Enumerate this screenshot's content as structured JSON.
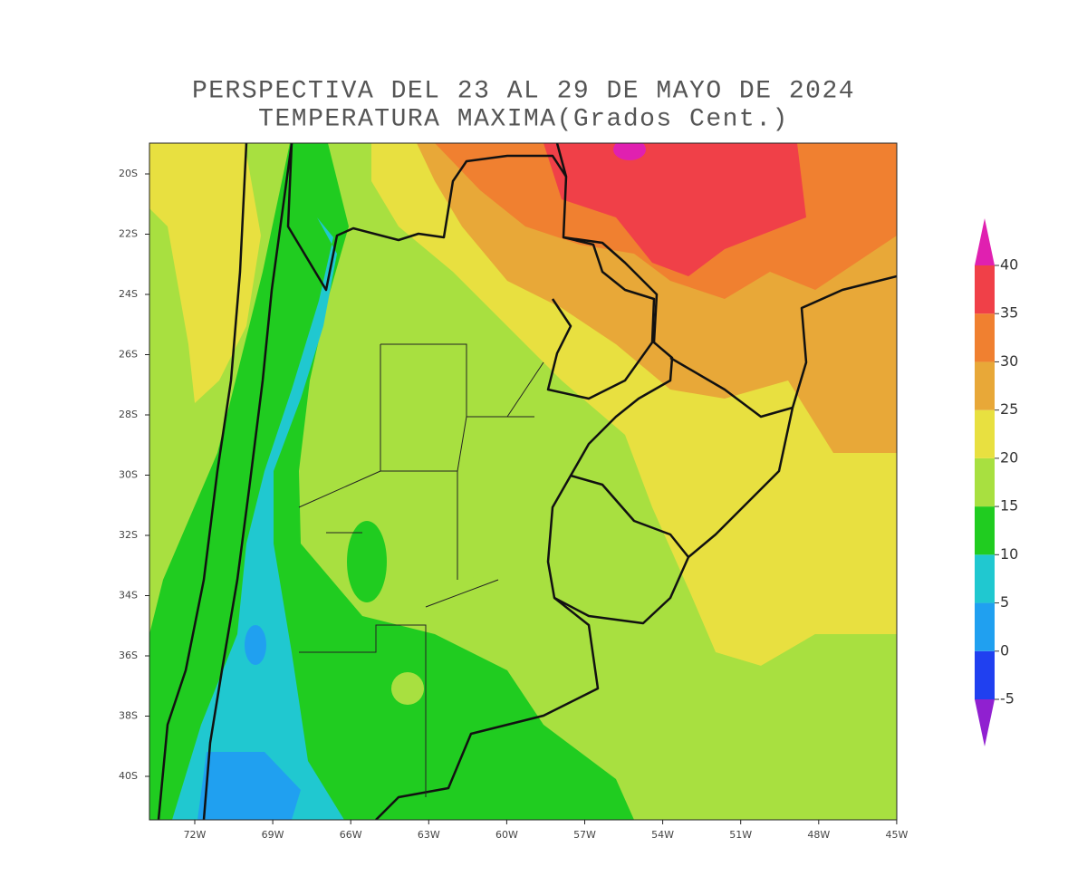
{
  "title": [
    "PERSPECTIVA DEL 23 AL 29 DE MAYO DE 2024",
    "TEMPERATURA MAXIMA(Grados Cent.)"
  ],
  "map": {
    "lat_labels": [
      "20S",
      "22S",
      "24S",
      "26S",
      "28S",
      "30S",
      "32S",
      "34S",
      "36S",
      "38S",
      "40S"
    ],
    "lon_labels": [
      "72W",
      "69W",
      "66W",
      "63W",
      "60W",
      "57W",
      "54W",
      "51W",
      "48W",
      "45W"
    ]
  },
  "colorbar": {
    "levels": [
      -5,
      0,
      5,
      10,
      15,
      20,
      25,
      30,
      35,
      40
    ],
    "colors": [
      "#9020d0",
      "#2040f0",
      "#20a0f0",
      "#20c8d0",
      "#20cc20",
      "#a8e040",
      "#e8e040",
      "#e8a838",
      "#f08030",
      "#f04048",
      "#e020b0"
    ]
  }
}
